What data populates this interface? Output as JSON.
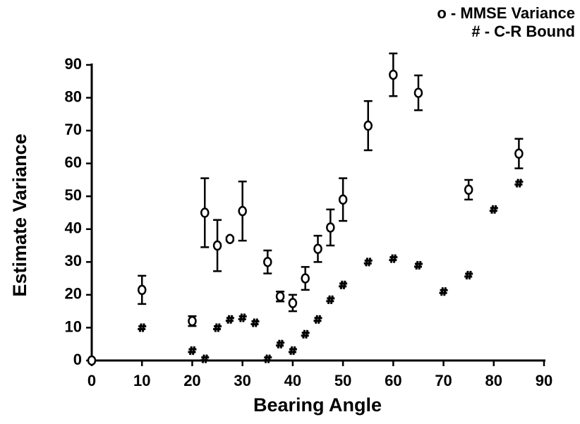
{
  "chart_data": {
    "type": "scatter",
    "x_label": "Bearing Angle",
    "y_label": "Estimate Variance",
    "xlim": [
      0,
      90
    ],
    "ylim": [
      0,
      90
    ],
    "xticks": [
      0,
      10,
      20,
      30,
      40,
      50,
      60,
      70,
      80,
      90
    ],
    "yticks": [
      0,
      10,
      20,
      30,
      40,
      50,
      60,
      70,
      80,
      90
    ],
    "legend": "upper right",
    "series": [
      {
        "name": "o - MMSE Variance",
        "marker": "circle",
        "color": "#000000",
        "x": [
          0,
          10,
          20,
          22.5,
          25,
          27.5,
          30,
          35,
          37.5,
          40,
          42.5,
          45,
          47.5,
          50,
          55,
          60,
          65,
          75,
          85
        ],
        "values": [
          0,
          21.5,
          12,
          45,
          35,
          37,
          45.5,
          30,
          19.5,
          17.5,
          25,
          34,
          40.5,
          49,
          71.5,
          87,
          81.5,
          52,
          63
        ],
        "errors": [
          0,
          4.3,
          1.5,
          10.5,
          7.8,
          0.5,
          9,
          3.5,
          1.5,
          2.5,
          3.5,
          4,
          5.5,
          6.5,
          7.5,
          6.5,
          5.3,
          3,
          4.5
        ]
      },
      {
        "name": "# - C-R Bound",
        "marker": "hash",
        "color": "#000000",
        "x": [
          10,
          20,
          22.5,
          25,
          27.5,
          30,
          32.5,
          35,
          37.5,
          40,
          42.5,
          45,
          47.5,
          50,
          55,
          60,
          65,
          70,
          75,
          80,
          85
        ],
        "values": [
          10,
          3,
          0.5,
          10,
          12.5,
          13,
          11.5,
          0.5,
          5,
          3,
          8,
          12.5,
          18.5,
          23,
          30,
          31,
          29,
          21,
          26,
          46,
          54
        ]
      }
    ]
  }
}
